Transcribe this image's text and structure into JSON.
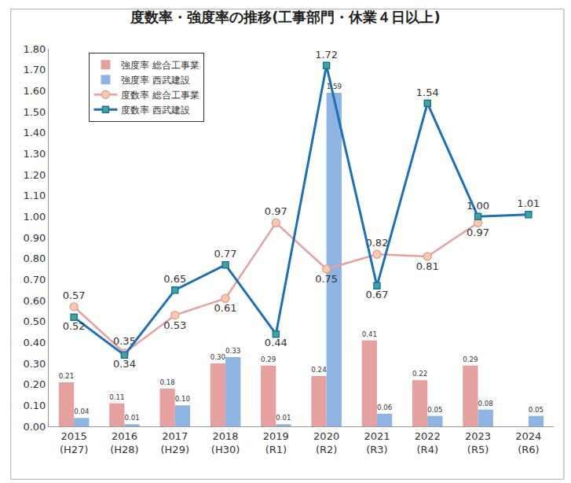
{
  "chart_data": {
    "type": "bar",
    "title": "度数率・強度率の推移(工事部門・休業４日以上)",
    "categories": [
      "2015\n(H27)",
      "2016\n(H28)",
      "2017\n(H29)",
      "2018\n(H30)",
      "2019\n(R1)",
      "2020\n(R2)",
      "2021\n(R3)",
      "2022\n(R4)",
      "2023\n(R5)",
      "2024\n(R6)"
    ],
    "series": [
      {
        "name": "強度率 総合工事業",
        "type": "bar",
        "color": "#E6A0A0",
        "values": [
          0.21,
          0.11,
          0.18,
          0.3,
          0.29,
          0.24,
          0.41,
          0.22,
          0.29,
          null
        ],
        "value_labels": [
          "0.21",
          "0.11",
          "0.18",
          "0.30",
          "0.29",
          "0.24",
          "0.41",
          "0.22",
          "0.29",
          null
        ]
      },
      {
        "name": "強度率 西武建設",
        "type": "bar",
        "color": "#8DB4E2",
        "values": [
          0.04,
          0.01,
          0.1,
          0.33,
          0.01,
          1.59,
          0.06,
          0.05,
          0.08,
          0.05
        ],
        "value_labels": [
          "0.04",
          "0.01",
          "0.10",
          "0.33",
          "0.01",
          "1.59",
          "0.06",
          "0.05",
          "0.08",
          "0.05"
        ]
      },
      {
        "name": "度数率 総合工事業",
        "type": "line",
        "color": "#E6A0A0",
        "marker": "circle",
        "values": [
          0.57,
          0.35,
          0.53,
          0.61,
          0.97,
          0.75,
          0.82,
          0.81,
          0.97,
          null
        ],
        "value_labels": [
          "0.57",
          "0.35",
          "0.53",
          "0.61",
          "0.97",
          "0.75",
          "0.82",
          "0.81",
          "0.97",
          null
        ]
      },
      {
        "name": "度数率 西武建設",
        "type": "line",
        "color": "#1F6FB5",
        "marker": "square",
        "values": [
          0.52,
          0.34,
          0.65,
          0.77,
          0.44,
          1.72,
          0.67,
          1.54,
          1.0,
          1.01
        ],
        "value_labels": [
          "0.52",
          "0.34",
          "0.65",
          "0.77",
          "0.44",
          "1.72",
          "0.67",
          "1.54",
          "1.00",
          "1.01"
        ]
      }
    ],
    "ylim": [
      0,
      1.8
    ],
    "yticks": [
      {
        "value": 0,
        "label": "0.00"
      },
      {
        "value": 0.1,
        "label": "0.10"
      },
      {
        "value": 0.2,
        "label": "0.20"
      },
      {
        "value": 0.3,
        "label": "0.30"
      },
      {
        "value": 0.4,
        "label": "0.40"
      },
      {
        "value": 0.5,
        "label": "0.50"
      },
      {
        "value": 0.6,
        "label": "0.60"
      },
      {
        "value": 0.7,
        "label": "0.70"
      },
      {
        "value": 0.8,
        "label": "0.80"
      },
      {
        "value": 0.9,
        "label": "0.90"
      },
      {
        "value": 1.0,
        "label": "1.00"
      },
      {
        "value": 1.1,
        "label": "1.10"
      },
      {
        "value": 1.2,
        "label": "1.20"
      },
      {
        "value": 1.3,
        "label": "1.30"
      },
      {
        "value": 1.4,
        "label": "1.40"
      },
      {
        "value": 1.5,
        "label": "1.50"
      },
      {
        "value": 1.6,
        "label": "1.60"
      },
      {
        "value": 1.7,
        "label": "1.70"
      },
      {
        "value": 1.8,
        "label": "1.80"
      }
    ],
    "grid": false,
    "legend": "upper left",
    "data_labels": true
  }
}
